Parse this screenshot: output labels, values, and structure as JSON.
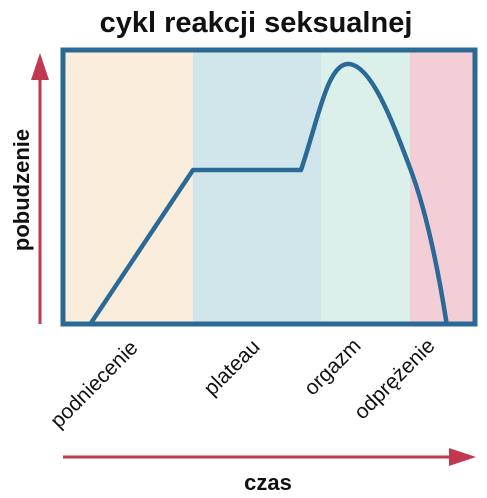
{
  "title": "cykl reakcji seksualnej",
  "y_axis": {
    "label": "pobudzenie",
    "color": "#c0394f"
  },
  "x_axis": {
    "label": "czas",
    "color": "#c0394f"
  },
  "frame_color": "#2b6a96",
  "curve_color": "#2b6a96",
  "phases": [
    {
      "label": "podniecenie",
      "color": "#fbeddb"
    },
    {
      "label": "plateau",
      "color": "#d0e6eb"
    },
    {
      "label": "orgazm",
      "color": "#dbefeb"
    },
    {
      "label": "odprężenie",
      "color": "#f3ced6"
    }
  ]
}
